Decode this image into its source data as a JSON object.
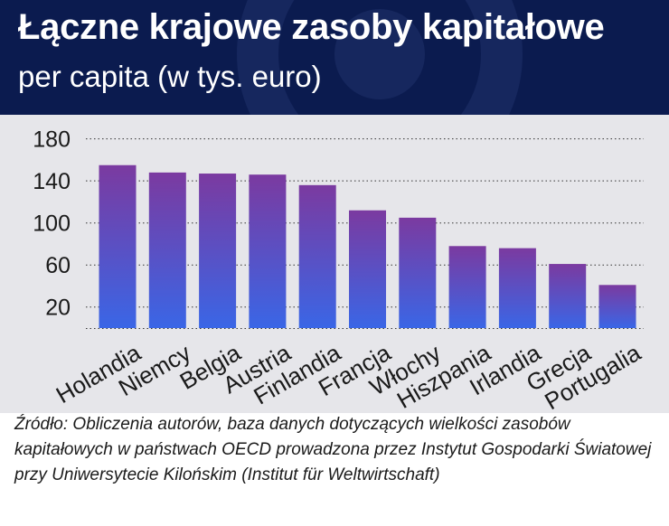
{
  "title": "Łączne krajowe zasoby kapitałowe",
  "subtitle": "per capita (w tys. euro)",
  "source": "Źródło: Obliczenia autorów, baza danych dotyczących wielkości zasobów kapitałowych w państwach OECD prowadzona przez Instytut Gospodarki Światowej przy Uniwersytecie Kilońskim (Institut für Weltwirtschaft)",
  "colors": {
    "header_bg": "#0b1b4f",
    "chart_bg": "#e6e6ea",
    "bar_top": "#7b3aa0",
    "bar_bottom": "#3a66e6"
  },
  "chart_data": {
    "type": "bar",
    "categories": [
      "Holandia",
      "Niemcy",
      "Belgia",
      "Austria",
      "Finlandia",
      "Francja",
      "Włochy",
      "Hiszpania",
      "Irlandia",
      "Grecja",
      "Portugalia"
    ],
    "values": [
      155,
      148,
      147,
      146,
      136,
      112,
      105,
      78,
      76,
      61,
      41
    ],
    "yticks": [
      20,
      60,
      100,
      140,
      180
    ],
    "ylim": [
      0,
      185
    ],
    "grid": true,
    "xlabel": "",
    "ylabel": ""
  }
}
